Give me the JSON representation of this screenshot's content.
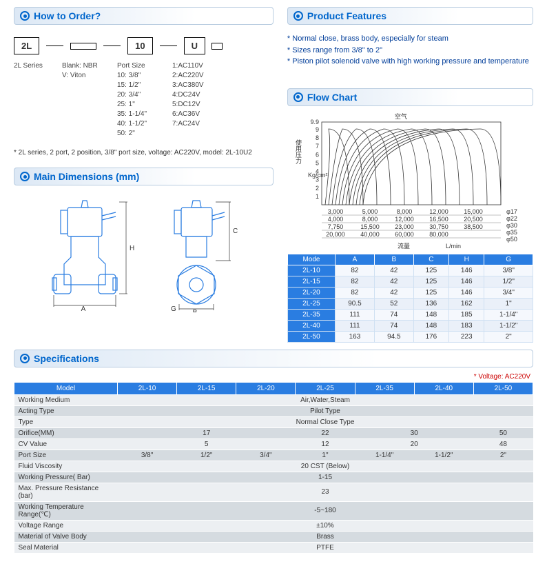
{
  "headers": {
    "how_to_order": "How to Order?",
    "main_dimensions": "Main Dimensions (mm)",
    "product_features": "Product Features",
    "flow_chart": "Flow  Chart",
    "specifications": "Specifications"
  },
  "order": {
    "boxes": [
      "2L",
      "",
      "10",
      "U"
    ],
    "extra_box": "",
    "series_label": "2L Series",
    "col_blank_lines": [
      "Blank: NBR",
      "V: Viton"
    ],
    "col_port_title": "Port Size",
    "col_port_lines": [
      "10: 3/8\"",
      "15: 1/2\"",
      "20: 3/4\"",
      "25: 1\"",
      "35: 1-1/4\"",
      "40: 1-1/2\"",
      "50: 2\""
    ],
    "col_volt_lines": [
      "1:AC110V",
      "2:AC220V",
      "3:AC380V",
      "4:DC24V",
      "5:DC12V",
      "6:AC36V",
      "7:AC24V"
    ],
    "note": "2L  series, 2 port, 2 position, 3/8\" port size, voltage: AC220V, model: 2L-10U2"
  },
  "features": {
    "lines": [
      "Normal close, brass body, especially for steam",
      "Sizes range from 3/8\"  to 2\"",
      "Piston pilot solenoid valve with high working pressure and temperature"
    ]
  },
  "flow_chart": {
    "y_label": "使用压力",
    "y_unit": "Kg/cm²",
    "y_ticks": [
      1,
      2,
      3,
      4,
      5,
      6,
      7,
      8,
      9,
      9.9
    ],
    "x_title_top": "空气",
    "x_title_bottom": "流量",
    "x_unit": "L/min",
    "x_rows": [
      [
        "3,000",
        "5,000",
        "8,000",
        "12,000",
        "15,000"
      ],
      [
        "4,000",
        "8,000",
        "12,000",
        "16,500",
        "20,500"
      ],
      [
        "7,750",
        "15,500",
        "23,000",
        "30,750",
        "38,500"
      ],
      [
        "20,000",
        "40,000",
        "60,000",
        "80,000",
        ""
      ]
    ],
    "phi_labels": [
      "φ17",
      "φ22",
      "φ30",
      "φ35",
      "φ50"
    ],
    "curve_color": "#333333",
    "grid_color": "#888888"
  },
  "dim_table": {
    "headers": [
      "Mode",
      "A",
      "B",
      "C",
      "H",
      "G"
    ],
    "rows": [
      [
        "2L-10",
        "82",
        "42",
        "125",
        "146",
        "3/8\""
      ],
      [
        "2L-15",
        "82",
        "42",
        "125",
        "146",
        "1/2\""
      ],
      [
        "2L-20",
        "82",
        "42",
        "125",
        "146",
        "3/4\""
      ],
      [
        "2L-25",
        "90.5",
        "52",
        "136",
        "162",
        "1\""
      ],
      [
        "2L-35",
        "111",
        "74",
        "148",
        "185",
        "1-1/4\""
      ],
      [
        "2L-40",
        "111",
        "74",
        "148",
        "183",
        "1-1/2\""
      ],
      [
        "2L-50",
        "163",
        "94.5",
        "176",
        "223",
        "2\""
      ]
    ],
    "header_bg": "#2a7de1"
  },
  "dim_drawing": {
    "labels": {
      "A": "A",
      "H": "H",
      "C": "C",
      "G": "G",
      "B": "B"
    }
  },
  "spec": {
    "voltage_note": "* Voltage: AC220V",
    "model_header": "Model",
    "models": [
      "2L-10",
      "2L-15",
      "2L-20",
      "2L-25",
      "2L-35",
      "2L-40",
      "2L-50"
    ],
    "rows": [
      {
        "label": "Working Medium",
        "span": 7,
        "value": "Air,Water,Steam"
      },
      {
        "label": "Acting Type",
        "span": 7,
        "value": "Pilot Type"
      },
      {
        "label": "Type",
        "span": 7,
        "value": "Normal Close Type"
      },
      {
        "label": "Orifice(MM)",
        "cells": [
          {
            "span": 3,
            "v": "17"
          },
          {
            "span": 1,
            "v": "22"
          },
          {
            "span": 2,
            "v": "30"
          },
          {
            "span": 1,
            "v": "50"
          }
        ]
      },
      {
        "label": "CV Value",
        "cells": [
          {
            "span": 3,
            "v": "5"
          },
          {
            "span": 1,
            "v": "12"
          },
          {
            "span": 2,
            "v": "20"
          },
          {
            "span": 1,
            "v": "48"
          }
        ]
      },
      {
        "label": "Port Size",
        "cells": [
          {
            "span": 1,
            "v": "3/8\""
          },
          {
            "span": 1,
            "v": "1/2\""
          },
          {
            "span": 1,
            "v": "3/4\""
          },
          {
            "span": 1,
            "v": "1\""
          },
          {
            "span": 1,
            "v": "1-1/4\""
          },
          {
            "span": 1,
            "v": "1-1/2\""
          },
          {
            "span": 1,
            "v": "2\""
          }
        ]
      },
      {
        "label": "Fluid Viscosity",
        "span": 7,
        "value": "20 CST (Below)"
      },
      {
        "label": "Working Pressure( Bar)",
        "span": 7,
        "value": "1-15"
      },
      {
        "label": "Max. Pressure  Resistance (bar)",
        "span": 7,
        "value": "23"
      },
      {
        "label": "Working Temperature Range(℃)",
        "span": 7,
        "value": "-5~180"
      },
      {
        "label": "Voltage Range",
        "span": 7,
        "value": "±10%"
      },
      {
        "label": "Material of Valve Body",
        "span": 7,
        "value": "Brass"
      },
      {
        "label": "Seal Material",
        "span": 7,
        "value": "PTFE"
      }
    ]
  }
}
